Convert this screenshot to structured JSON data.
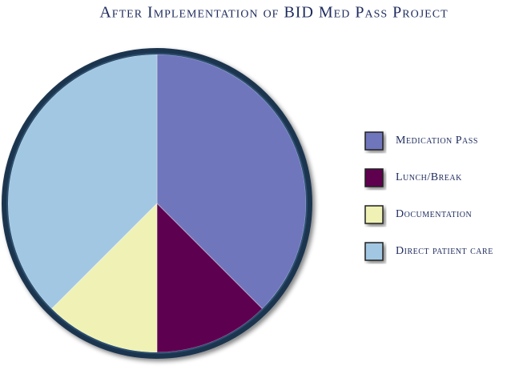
{
  "chart_data": {
    "type": "pie",
    "title": "After Implementation of BID Med Pass Project",
    "categories": [
      "Medication Pass",
      "Lunch/Break",
      "Documentation",
      "Direct patient care"
    ],
    "values": [
      37.5,
      12.5,
      12.5,
      37.5
    ],
    "colors": [
      "#6f76bc",
      "#5e0050",
      "#eff2b4",
      "#a2c7e2"
    ]
  }
}
